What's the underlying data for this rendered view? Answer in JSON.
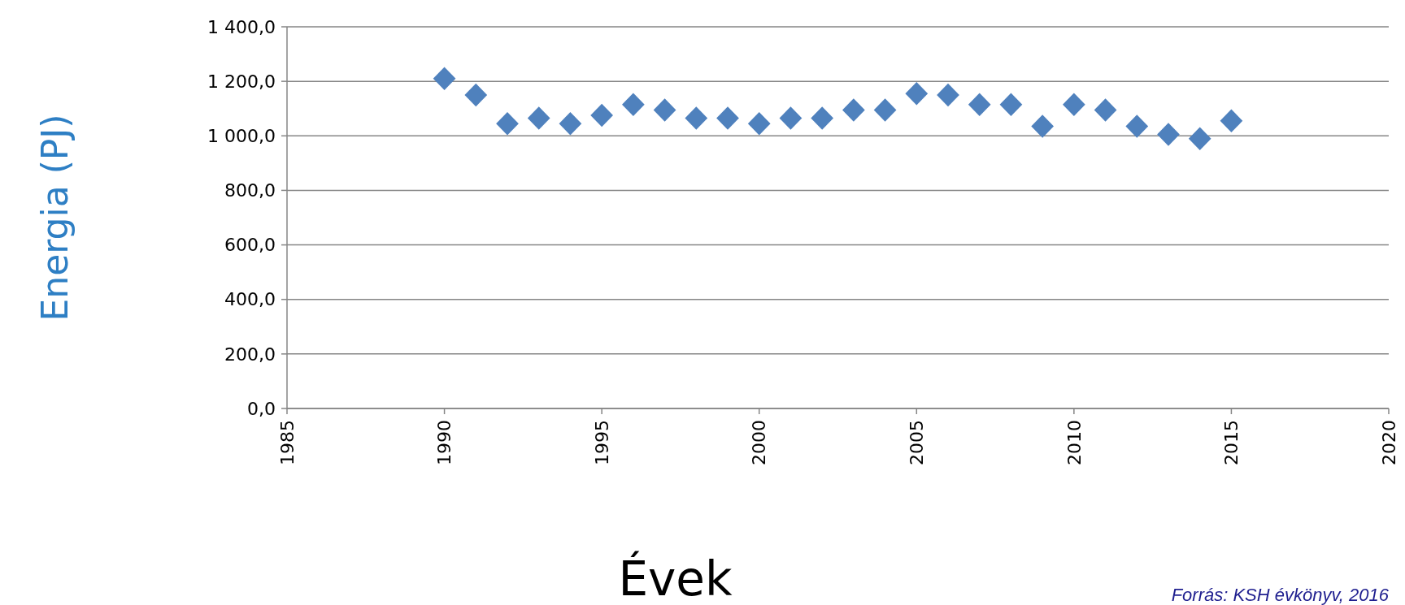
{
  "chart_data": {
    "type": "scatter",
    "xlabel": "Évek",
    "ylabel": "Energia (PJ)",
    "annotations": [
      "Forrás: KSH évkönyv, 2016"
    ],
    "x": [
      1990,
      1991,
      1992,
      1993,
      1994,
      1995,
      1996,
      1997,
      1998,
      1999,
      2000,
      2001,
      2002,
      2003,
      2004,
      2005,
      2006,
      2007,
      2008,
      2009,
      2010,
      2011,
      2012,
      2013,
      2014,
      2015
    ],
    "series": [
      {
        "color": "#4f81bd",
        "values": [
          1210,
          1150,
          1045,
          1065,
          1045,
          1075,
          1115,
          1095,
          1065,
          1065,
          1045,
          1065,
          1065,
          1095,
          1095,
          1155,
          1150,
          1115,
          1115,
          1035,
          1115,
          1095,
          1035,
          1005,
          990,
          1055
        ]
      }
    ],
    "xlim": [
      1985,
      2020
    ],
    "xticks": [
      1985,
      1990,
      1995,
      2000,
      2005,
      2010,
      2015,
      2020
    ],
    "ylim": [
      0,
      1400
    ],
    "yticks": [
      {
        "value": 0,
        "label": "0,0"
      },
      {
        "value": 200,
        "label": "200,0"
      },
      {
        "value": 400,
        "label": "400,0"
      },
      {
        "value": 600,
        "label": "600,0"
      },
      {
        "value": 800,
        "label": "800,0"
      },
      {
        "value": 1000,
        "label": "1 000,0"
      },
      {
        "value": 1200,
        "label": "1 200,0"
      },
      {
        "value": 1400,
        "label": "1 400,0"
      }
    ],
    "grid": "y",
    "marker": "diamond"
  }
}
